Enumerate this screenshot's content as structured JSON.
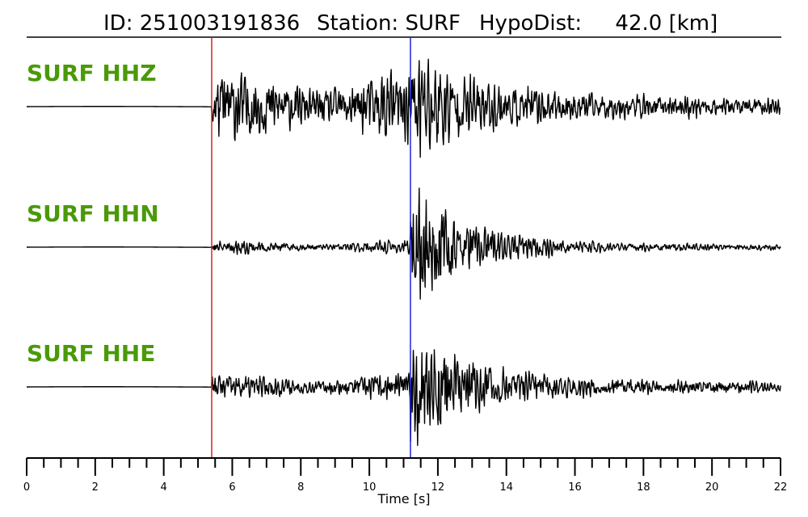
{
  "title": {
    "id_text": "ID: 251003191836",
    "station_text": "Station: SURF",
    "dist_text": "HypoDist:     42.0 [km]"
  },
  "colors": {
    "channel_label": "#4a9a08",
    "p_pick": "#dd2222",
    "s_pick": "#2222dd",
    "trace": "#000000"
  },
  "chart_data": {
    "type": "line",
    "xlabel": "Time [s]",
    "xlim": [
      0,
      22
    ],
    "major_ticks": [
      0,
      2,
      4,
      6,
      8,
      10,
      12,
      14,
      16,
      18,
      20,
      22
    ],
    "minor_tick_step": 0.5,
    "picks": [
      {
        "phase": "P",
        "time": 5.4,
        "color": "#dd2222"
      },
      {
        "phase": "S",
        "time": 11.2,
        "color": "#2222dd"
      }
    ],
    "series": [
      {
        "name": "SURF HHZ",
        "onset": 5.4,
        "s_time": 11.2,
        "pre": 0.003,
        "p_amp": 0.32,
        "s_amp": 0.62,
        "coda": 0.16,
        "seed": 11
      },
      {
        "name": "SURF HHN",
        "onset": 5.4,
        "s_time": 11.2,
        "pre": 0.003,
        "p_amp": 0.06,
        "s_amp": 0.72,
        "coda": 0.05,
        "seed": 23
      },
      {
        "name": "SURF HHE",
        "onset": 5.4,
        "s_time": 11.2,
        "pre": 0.003,
        "p_amp": 0.12,
        "s_amp": 0.72,
        "coda": 0.1,
        "seed": 37
      }
    ]
  }
}
